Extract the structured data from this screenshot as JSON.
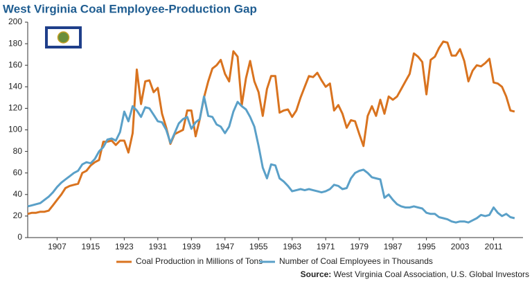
{
  "chart_data": {
    "type": "line",
    "title": "West Virginia Coal Employee-Production Gap",
    "source_label": "Source:",
    "source": "West Virginia Coal Association, U.S. Global Investors",
    "x": [
      1900,
      1901,
      1902,
      1903,
      1904,
      1905,
      1906,
      1907,
      1908,
      1909,
      1910,
      1911,
      1912,
      1913,
      1914,
      1915,
      1916,
      1917,
      1918,
      1919,
      1920,
      1921,
      1922,
      1923,
      1924,
      1925,
      1926,
      1927,
      1928,
      1929,
      1930,
      1931,
      1932,
      1933,
      1934,
      1935,
      1936,
      1937,
      1938,
      1939,
      1940,
      1941,
      1942,
      1943,
      1944,
      1945,
      1946,
      1947,
      1948,
      1949,
      1950,
      1951,
      1952,
      1953,
      1954,
      1955,
      1956,
      1957,
      1958,
      1959,
      1960,
      1961,
      1962,
      1963,
      1964,
      1965,
      1966,
      1967,
      1968,
      1969,
      1970,
      1971,
      1972,
      1973,
      1974,
      1975,
      1976,
      1977,
      1978,
      1979,
      1980,
      1981,
      1982,
      1983,
      1984,
      1985,
      1986,
      1987,
      1988,
      1989,
      1990,
      1991,
      1992,
      1993,
      1994,
      1995,
      1996,
      1997,
      1998,
      1999,
      2000,
      2001,
      2002,
      2003,
      2004,
      2005,
      2006,
      2007,
      2008,
      2009,
      2010,
      2011,
      2012,
      2013,
      2014,
      2015,
      2016
    ],
    "series": [
      {
        "name": "Coal Production in Millions of Tons",
        "color": "#d9731f",
        "values": [
          22,
          23,
          23,
          24,
          24,
          25,
          30,
          35,
          40,
          46,
          48,
          49,
          50,
          60,
          62,
          67,
          70,
          72,
          89,
          89,
          90,
          86,
          90,
          90,
          79,
          97,
          156,
          124,
          145,
          146,
          135,
          139,
          115,
          102,
          87,
          96,
          98,
          100,
          118,
          118,
          94,
          110,
          130,
          145,
          157,
          160,
          165,
          152,
          145,
          173,
          168,
          123,
          148,
          164,
          145,
          135,
          113,
          138,
          150,
          150,
          116,
          118,
          119,
          112,
          118,
          130,
          140,
          150,
          149,
          153,
          146,
          140,
          143,
          118,
          123,
          115,
          102,
          109,
          108,
          96,
          85,
          113,
          122,
          113,
          128,
          115,
          131,
          128,
          131,
          138,
          145,
          152,
          171,
          168,
          163,
          133,
          165,
          168,
          176,
          182,
          181,
          169,
          169,
          175,
          164,
          145,
          155,
          160,
          159,
          162,
          166,
          144,
          143,
          140,
          131,
          118,
          117
        ]
      },
      {
        "name": "Number of Coal Employees in Thousands",
        "color": "#5aa0c8",
        "values": [
          29,
          30,
          31,
          32,
          35,
          38,
          42,
          47,
          51,
          54,
          57,
          60,
          62,
          68,
          70,
          69,
          73,
          80,
          84,
          91,
          92,
          90,
          98,
          117,
          108,
          122,
          118,
          112,
          121,
          120,
          114,
          108,
          107,
          100,
          88,
          97,
          106,
          110,
          112,
          101,
          107,
          110,
          131,
          113,
          112,
          105,
          103,
          97,
          103,
          117,
          126,
          122,
          119,
          112,
          103,
          85,
          65,
          55,
          68,
          67,
          55,
          52,
          48,
          43,
          44,
          45,
          44,
          45,
          44,
          43,
          42,
          43,
          45,
          49,
          48,
          45,
          46,
          55,
          60,
          62,
          63,
          60,
          56,
          55,
          54,
          37,
          40,
          35,
          31,
          29,
          28,
          28,
          29,
          28,
          27,
          23,
          22,
          22,
          19,
          18,
          17,
          15,
          14,
          15,
          15,
          14,
          16,
          18,
          21,
          20,
          21,
          28,
          23,
          20,
          22,
          19,
          18
        ]
      }
    ],
    "xlim": [
      1900,
      2018
    ],
    "xticks": [
      1907,
      1915,
      1923,
      1931,
      1939,
      1947,
      1955,
      1963,
      1971,
      1979,
      1987,
      1995,
      2003,
      2011
    ],
    "ylim": [
      0,
      200
    ],
    "yticks": [
      0,
      20,
      40,
      60,
      80,
      100,
      120,
      140,
      160,
      180,
      200
    ]
  }
}
